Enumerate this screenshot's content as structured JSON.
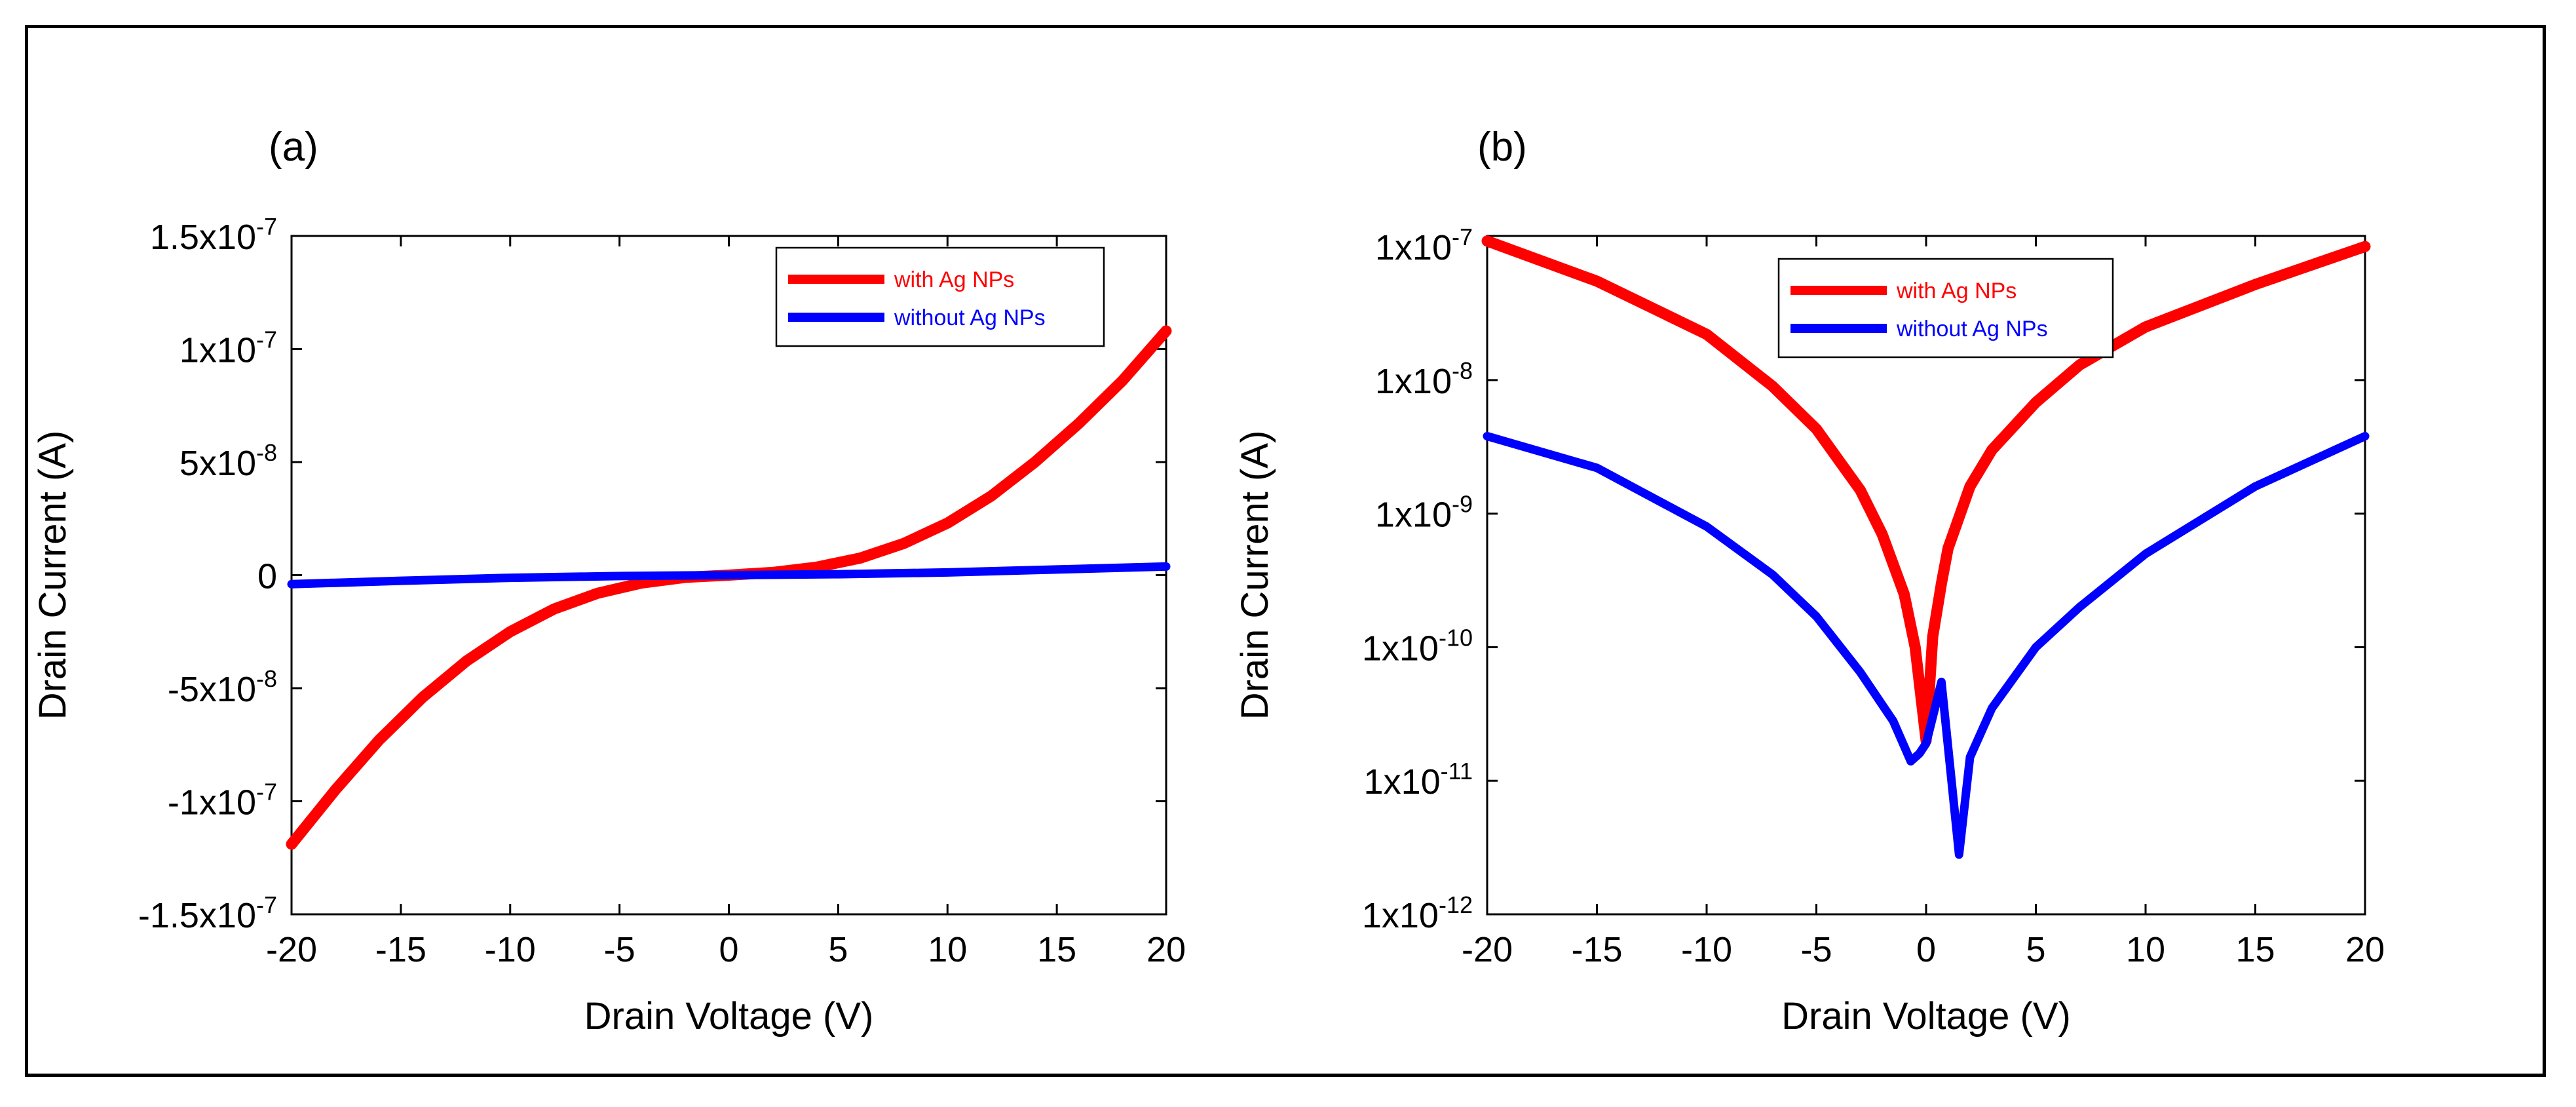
{
  "chart_data": [
    {
      "type": "line",
      "panel_label": "(a)",
      "xlabel": "Drain Voltage (V)",
      "ylabel": "Drain Current (A)",
      "xlim": [
        -20,
        20
      ],
      "ylim": [
        -1.5e-07,
        1.5e-07
      ],
      "yscale": "linear",
      "x_ticks": [
        -20,
        -15,
        -10,
        -5,
        0,
        5,
        10,
        15,
        20
      ],
      "x_tick_labels": [
        "-20",
        "-15",
        "-10",
        "-5",
        "0",
        "5",
        "10",
        "15",
        "20"
      ],
      "y_ticks": [
        {
          "value": 1.5e-07,
          "mantissa": "1.5x10",
          "exp": "-7"
        },
        {
          "value": 1e-07,
          "mantissa": "1x10",
          "exp": "-7"
        },
        {
          "value": 5e-08,
          "mantissa": "5x10",
          "exp": "-8"
        },
        {
          "value": 0,
          "mantissa": "0",
          "exp": ""
        },
        {
          "value": -5e-08,
          "mantissa": "-5x10",
          "exp": "-8"
        },
        {
          "value": -1e-07,
          "mantissa": "-1x10",
          "exp": "-7"
        },
        {
          "value": -1.5e-07,
          "mantissa": "-1.5x10",
          "exp": "-7"
        }
      ],
      "legend_position": "top-right",
      "series": [
        {
          "name": "with Ag NPs",
          "color": "#ff0000",
          "x": [
            -20,
            -18,
            -16,
            -14,
            -12,
            -10,
            -8,
            -6,
            -4,
            -2,
            0,
            2,
            4,
            6,
            8,
            10,
            12,
            14,
            16,
            18,
            20
          ],
          "y": [
            -1.19e-07,
            -9.5e-08,
            -7.3e-08,
            -5.4e-08,
            -3.8e-08,
            -2.5e-08,
            -1.5e-08,
            -8e-09,
            -3.5e-09,
            -1e-09,
            0,
            1.2e-09,
            3.5e-09,
            7.5e-09,
            1.4e-08,
            2.3e-08,
            3.5e-08,
            5e-08,
            6.7e-08,
            8.6e-08,
            1.08e-07
          ]
        },
        {
          "name": "without Ag NPs",
          "color": "#0000ff",
          "x": [
            -20,
            -15,
            -10,
            -5,
            0,
            5,
            10,
            15,
            20
          ],
          "y": [
            -4e-09,
            -2.5e-09,
            -1.2e-09,
            -4e-10,
            0,
            4e-10,
            1.2e-09,
            2.5e-09,
            3.8e-09
          ]
        }
      ]
    },
    {
      "type": "line",
      "panel_label": "(b)",
      "xlabel": "Drain Voltage (V)",
      "ylabel": "Drain Current (A)",
      "xlim": [
        -20,
        20
      ],
      "ylim": [
        1e-12,
        1.2e-07
      ],
      "yscale": "log",
      "x_ticks": [
        -20,
        -15,
        -10,
        -5,
        0,
        5,
        10,
        15,
        20
      ],
      "x_tick_labels": [
        "-20",
        "-15",
        "-10",
        "-5",
        "0",
        "5",
        "10",
        "15",
        "20"
      ],
      "y_ticks": [
        {
          "value": 1e-07,
          "mantissa": "1x10",
          "exp": "-7"
        },
        {
          "value": 1e-08,
          "mantissa": "1x10",
          "exp": "-8"
        },
        {
          "value": 1e-09,
          "mantissa": "1x10",
          "exp": "-9"
        },
        {
          "value": 1e-10,
          "mantissa": "1x10",
          "exp": "-10"
        },
        {
          "value": 1e-11,
          "mantissa": "1x10",
          "exp": "-11"
        },
        {
          "value": 1e-12,
          "mantissa": "1x10",
          "exp": "-12"
        }
      ],
      "legend_position": "top-center",
      "series": [
        {
          "name": "with Ag NPs",
          "color": "#ff0000",
          "x": [
            -20,
            -15,
            -10,
            -7,
            -5,
            -3,
            -2,
            -1,
            -0.5,
            0,
            0.3,
            0.7,
            1,
            2,
            3,
            5,
            7,
            10,
            15,
            20
          ],
          "y": [
            1.1e-07,
            5.5e-08,
            2.2e-08,
            9e-09,
            4.3e-09,
            1.5e-09,
            7e-10,
            2.5e-10,
            1e-10,
            2e-11,
            1.2e-10,
            3e-10,
            5.5e-10,
            1.6e-09,
            3e-09,
            6.8e-09,
            1.3e-08,
            2.5e-08,
            5.2e-08,
            1e-07
          ]
        },
        {
          "name": "without Ag NPs",
          "color": "#0000ff",
          "x": [
            -20,
            -15,
            -10,
            -7,
            -5,
            -3,
            -1.5,
            -0.7,
            -0.3,
            0,
            0.3,
            0.7,
            1.5,
            2,
            3,
            5,
            7,
            10,
            15,
            20
          ],
          "y": [
            3.8e-09,
            2.2e-09,
            8e-10,
            3.5e-10,
            1.7e-10,
            6.5e-11,
            2.8e-11,
            1.4e-11,
            1.6e-11,
            1.9e-11,
            3e-11,
            5.5e-11,
            2.8e-12,
            1.5e-11,
            3.5e-11,
            1e-10,
            2e-10,
            5e-10,
            1.6e-09,
            3.8e-09
          ]
        }
      ]
    }
  ]
}
